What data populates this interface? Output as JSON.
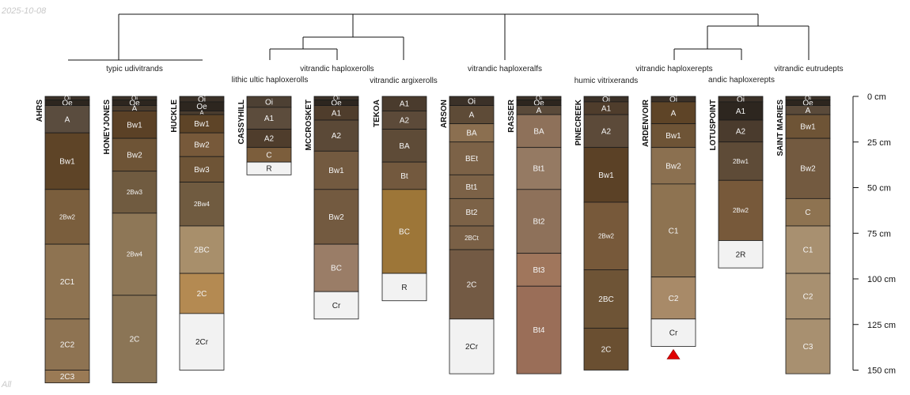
{
  "date_stamp": "2025-10-08",
  "footer_note": "All",
  "colors": {
    "outline": "#1a1a1a",
    "dendrogram": "#111111",
    "marker": "#e00000"
  },
  "taxa_labels": [
    "typic udivitrands",
    "lithic ultic haploxerolls",
    "vitrandic haploxerolls",
    "vitrandic argixerolls",
    "vitrandic haploxeralfs",
    "humic vitrixerands",
    "vitrandic haploxerepts",
    "andic haploxerepts",
    "vitrandic eutrudepts"
  ],
  "depth_axis": {
    "max_cm": 150,
    "ticks": [
      {
        "value": 0,
        "label": "0 cm"
      },
      {
        "value": 25,
        "label": "25 cm"
      },
      {
        "value": 50,
        "label": "50 cm"
      },
      {
        "value": 75,
        "label": "75 cm"
      },
      {
        "value": 100,
        "label": "100 cm"
      },
      {
        "value": 125,
        "label": "125 cm"
      },
      {
        "value": 150,
        "label": "150 cm"
      }
    ]
  },
  "profiles": [
    {
      "name": "AHRS",
      "horizons": [
        {
          "name": "Oi",
          "top": 0,
          "bottom": 2,
          "color": "#3b3128"
        },
        {
          "name": "Oe",
          "top": 2,
          "bottom": 5,
          "color": "#2d261f"
        },
        {
          "name": "A",
          "top": 5,
          "bottom": 20,
          "color": "#5a4c3e"
        },
        {
          "name": "Bw1",
          "top": 20,
          "bottom": 51,
          "color": "#5e4427"
        },
        {
          "name": "2Bw2",
          "top": 51,
          "bottom": 81,
          "color": "#7a5e3d"
        },
        {
          "name": "2C1",
          "top": 81,
          "bottom": 122,
          "color": "#8e7351"
        },
        {
          "name": "2C2",
          "top": 122,
          "bottom": 150,
          "color": "#8e7352"
        },
        {
          "name": "2C3",
          "top": 150,
          "bottom": 157,
          "color": "#9a7a55"
        }
      ]
    },
    {
      "name": "HONEYJONES",
      "horizons": [
        {
          "name": "Oi",
          "top": 0,
          "bottom": 2,
          "color": "#3b3128"
        },
        {
          "name": "Oe",
          "top": 2,
          "bottom": 5,
          "color": "#2d261f"
        },
        {
          "name": "A",
          "top": 5,
          "bottom": 8,
          "color": "#4a3c2e"
        },
        {
          "name": "Bw1",
          "top": 8,
          "bottom": 23,
          "color": "#5b4126"
        },
        {
          "name": "Bw2",
          "top": 23,
          "bottom": 41,
          "color": "#6e5436"
        },
        {
          "name": "2Bw3",
          "top": 41,
          "bottom": 64,
          "color": "#705b40"
        },
        {
          "name": "2Bw4",
          "top": 64,
          "bottom": 109,
          "color": "#8e7757"
        },
        {
          "name": "2C",
          "top": 109,
          "bottom": 157,
          "color": "#8b7556"
        }
      ]
    },
    {
      "name": "HUCKLE",
      "horizons": [
        {
          "name": "Oi",
          "top": 0,
          "bottom": 3,
          "color": "#3b3128"
        },
        {
          "name": "Oe",
          "top": 3,
          "bottom": 8,
          "color": "#2d261f"
        },
        {
          "name": "A",
          "top": 8,
          "bottom": 10,
          "color": "#4a3c2e"
        },
        {
          "name": "Bw1",
          "top": 10,
          "bottom": 20,
          "color": "#5e4427"
        },
        {
          "name": "Bw2",
          "top": 20,
          "bottom": 33,
          "color": "#77593a"
        },
        {
          "name": "Bw3",
          "top": 33,
          "bottom": 47,
          "color": "#6e5436"
        },
        {
          "name": "2Bw4",
          "top": 47,
          "bottom": 71,
          "color": "#705b40"
        },
        {
          "name": "2BC",
          "top": 71,
          "bottom": 97,
          "color": "#a88f6b"
        },
        {
          "name": "2C",
          "top": 97,
          "bottom": 119,
          "color": "#b48a52"
        },
        {
          "name": "2Cr",
          "top": 119,
          "bottom": 150,
          "color": "#f2f2f2"
        }
      ]
    },
    {
      "name": "CASSYHILL",
      "horizons": [
        {
          "name": "Oi",
          "top": 0,
          "bottom": 6,
          "color": "#4d4033"
        },
        {
          "name": "A1",
          "top": 6,
          "bottom": 18,
          "color": "#5c4c3c"
        },
        {
          "name": "A2",
          "top": 18,
          "bottom": 28,
          "color": "#4f3d2c"
        },
        {
          "name": "C",
          "top": 28,
          "bottom": 36,
          "color": "#7c5e3c"
        },
        {
          "name": "R",
          "top": 36,
          "bottom": 43,
          "color": "#f2f2f2"
        }
      ]
    },
    {
      "name": "MCCROSKET",
      "horizons": [
        {
          "name": "Oi",
          "top": 0,
          "bottom": 2,
          "color": "#3b3128"
        },
        {
          "name": "Oe",
          "top": 2,
          "bottom": 5,
          "color": "#2d261f"
        },
        {
          "name": "A1",
          "top": 5,
          "bottom": 13,
          "color": "#4f3d2c"
        },
        {
          "name": "A2",
          "top": 13,
          "bottom": 30,
          "color": "#5b4937"
        },
        {
          "name": "Bw1",
          "top": 30,
          "bottom": 51,
          "color": "#735a40"
        },
        {
          "name": "Bw2",
          "top": 51,
          "bottom": 81,
          "color": "#735a40"
        },
        {
          "name": "BC",
          "top": 81,
          "bottom": 107,
          "color": "#9a7d67"
        },
        {
          "name": "Cr",
          "top": 107,
          "bottom": 122,
          "color": "#f2f2f2"
        }
      ]
    },
    {
      "name": "TEKOA",
      "horizons": [
        {
          "name": "A1",
          "top": 0,
          "bottom": 8,
          "color": "#4a3b2d"
        },
        {
          "name": "A2",
          "top": 8,
          "bottom": 18,
          "color": "#5c4a39"
        },
        {
          "name": "BA",
          "top": 18,
          "bottom": 36,
          "color": "#5e4b37"
        },
        {
          "name": "Bt",
          "top": 36,
          "bottom": 51,
          "color": "#73593e"
        },
        {
          "name": "BC",
          "top": 51,
          "bottom": 97,
          "color": "#9d7638"
        },
        {
          "name": "R",
          "top": 97,
          "bottom": 112,
          "color": "#f2f2f2"
        }
      ]
    },
    {
      "name": "ARSON",
      "horizons": [
        {
          "name": "Oi",
          "top": 0,
          "bottom": 5,
          "color": "#3b3128"
        },
        {
          "name": "A",
          "top": 5,
          "bottom": 15,
          "color": "#5e4b37"
        },
        {
          "name": "BA",
          "top": 15,
          "bottom": 25,
          "color": "#8b6f50"
        },
        {
          "name": "BEt",
          "top": 25,
          "bottom": 43,
          "color": "#7c6247"
        },
        {
          "name": "Bt1",
          "top": 43,
          "bottom": 56,
          "color": "#7c6247"
        },
        {
          "name": "Bt2",
          "top": 56,
          "bottom": 71,
          "color": "#7c6247"
        },
        {
          "name": "2BCt",
          "top": 71,
          "bottom": 84,
          "color": "#7a6046"
        },
        {
          "name": "2C",
          "top": 84,
          "bottom": 122,
          "color": "#735a44"
        },
        {
          "name": "2Cr",
          "top": 122,
          "bottom": 152,
          "color": "#f2f2f2"
        }
      ]
    },
    {
      "name": "RASSER",
      "horizons": [
        {
          "name": "Oi",
          "top": 0,
          "bottom": 2,
          "color": "#3b3128"
        },
        {
          "name": "Oe",
          "top": 2,
          "bottom": 5,
          "color": "#2d261f"
        },
        {
          "name": "A",
          "top": 5,
          "bottom": 10,
          "color": "#5a4a3a"
        },
        {
          "name": "BA",
          "top": 10,
          "bottom": 28,
          "color": "#8e715a"
        },
        {
          "name": "Bt1",
          "top": 28,
          "bottom": 51,
          "color": "#957a63"
        },
        {
          "name": "Bt2",
          "top": 51,
          "bottom": 86,
          "color": "#8e715a"
        },
        {
          "name": "Bt3",
          "top": 86,
          "bottom": 104,
          "color": "#a0765c"
        },
        {
          "name": "Bt4",
          "top": 104,
          "bottom": 152,
          "color": "#9a6e58"
        }
      ]
    },
    {
      "name": "PINECREEK",
      "horizons": [
        {
          "name": "Oi",
          "top": 0,
          "bottom": 3,
          "color": "#3b3128"
        },
        {
          "name": "A1",
          "top": 3,
          "bottom": 10,
          "color": "#4f3d2c"
        },
        {
          "name": "A2",
          "top": 10,
          "bottom": 28,
          "color": "#5c4a39"
        },
        {
          "name": "Bw1",
          "top": 28,
          "bottom": 58,
          "color": "#5b4126"
        },
        {
          "name": "2Bw2",
          "top": 58,
          "bottom": 95,
          "color": "#77593a"
        },
        {
          "name": "2BC",
          "top": 95,
          "bottom": 127,
          "color": "#6e5436"
        },
        {
          "name": "2C",
          "top": 127,
          "bottom": 150,
          "color": "#6a4f31"
        }
      ]
    },
    {
      "name": "ARDENVOIR",
      "horizons": [
        {
          "name": "Oi",
          "top": 0,
          "bottom": 3,
          "color": "#3b3128"
        },
        {
          "name": "A",
          "top": 3,
          "bottom": 15,
          "color": "#5e4427"
        },
        {
          "name": "Bw1",
          "top": 15,
          "bottom": 28,
          "color": "#6e5436"
        },
        {
          "name": "Bw2",
          "top": 28,
          "bottom": 48,
          "color": "#8b7050"
        },
        {
          "name": "C1",
          "top": 48,
          "bottom": 99,
          "color": "#8e7351"
        },
        {
          "name": "C2",
          "top": 99,
          "bottom": 122,
          "color": "#a88a68"
        },
        {
          "name": "Cr",
          "top": 122,
          "bottom": 137,
          "color": "#f2f2f2"
        }
      ]
    },
    {
      "name": "LOTUSPOINT",
      "horizons": [
        {
          "name": "Oi",
          "top": 0,
          "bottom": 3,
          "color": "#3b3128"
        },
        {
          "name": "A1",
          "top": 3,
          "bottom": 13,
          "color": "#2d261f"
        },
        {
          "name": "A2",
          "top": 13,
          "bottom": 25,
          "color": "#4a3b2d"
        },
        {
          "name": "2Bw1",
          "top": 25,
          "bottom": 46,
          "color": "#5e4b37"
        },
        {
          "name": "2Bw2",
          "top": 46,
          "bottom": 79,
          "color": "#77593a"
        },
        {
          "name": "2R",
          "top": 79,
          "bottom": 94,
          "color": "#f2f2f2"
        }
      ]
    },
    {
      "name": "SAINT MARIES",
      "horizons": [
        {
          "name": "Oi",
          "top": 0,
          "bottom": 2,
          "color": "#3b3128"
        },
        {
          "name": "Oe",
          "top": 2,
          "bottom": 5,
          "color": "#2d261f"
        },
        {
          "name": "A",
          "top": 5,
          "bottom": 10,
          "color": "#5a4a3a"
        },
        {
          "name": "Bw1",
          "top": 10,
          "bottom": 23,
          "color": "#6e5436"
        },
        {
          "name": "Bw2",
          "top": 23,
          "bottom": 56,
          "color": "#735a40"
        },
        {
          "name": "C",
          "top": 56,
          "bottom": 71,
          "color": "#8e7351"
        },
        {
          "name": "C1",
          "top": 71,
          "bottom": 97,
          "color": "#a89070"
        },
        {
          "name": "C2",
          "top": 97,
          "bottom": 122,
          "color": "#a89070"
        },
        {
          "name": "C3",
          "top": 122,
          "bottom": 152,
          "color": "#a89070"
        }
      ]
    }
  ]
}
